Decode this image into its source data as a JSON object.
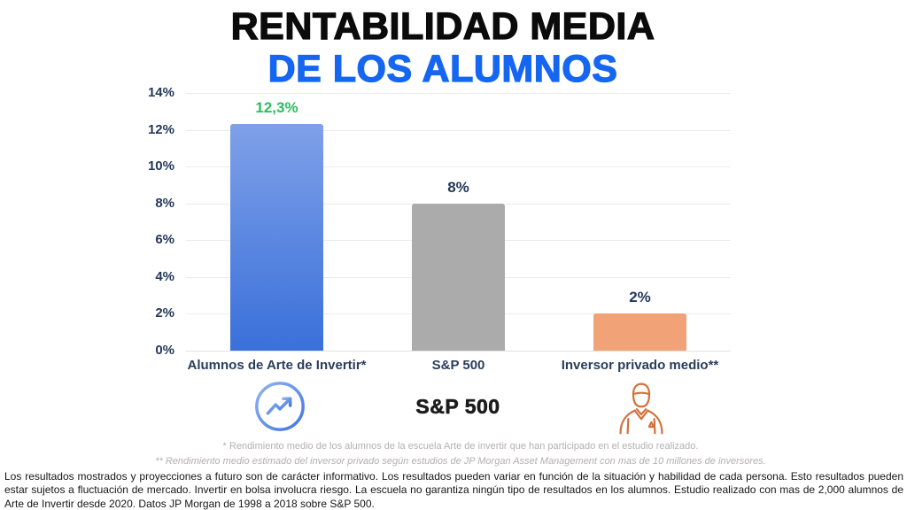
{
  "header": {
    "title_line1": "RENTABILIDAD MEDIA",
    "title_line2": "DE LOS ALUMNOS"
  },
  "chart_data": {
    "type": "bar",
    "title": "RENTABILIDAD MEDIA DE LOS ALUMNOS",
    "categories": [
      "Alumnos de Arte de Invertir*",
      "S&P 500",
      "Inversor privado medio**"
    ],
    "values": [
      12.3,
      8,
      2
    ],
    "value_labels": [
      "12,3%",
      "8%",
      "2%"
    ],
    "value_label_colors": [
      "#2cbe5d",
      "#24395b",
      "#24395b"
    ],
    "bar_fills": [
      [
        "#7fa0e8",
        "#3a70da"
      ],
      [
        "#ababab",
        "#ababab"
      ],
      [
        "#f2a277",
        "#f2a277"
      ]
    ],
    "xlabel": "",
    "ylabel": "",
    "ylim": [
      0,
      14
    ],
    "ytick_step": 2,
    "ytick_labels": [
      "0%",
      "2%",
      "4%",
      "6%",
      "8%",
      "10%",
      "12%",
      "14%"
    ],
    "grid": true,
    "legend": "none"
  },
  "icons": {
    "students_icon": "trending-up-circle-icon",
    "sp500_label": "S&P 500",
    "investor_icon": "businessman-icon"
  },
  "footnotes": {
    "line1": "* Rendimiento medio de los alumnos de la escuela Arte de invertir que han participado en el estudio realizado.",
    "line2": "** Rendimiento medio estimado del inversor privado según estudios de JP Morgan Asset Management con mas de 10 millones de inversores."
  },
  "footer": {
    "disclaimer": "Los resultados mostrados y proyecciones a futuro son de carácter informativo. Los resultados pueden variar en función de la situación y habilidad de cada persona. Esto resultados pueden estar sujetos a fluctuación de mercado. Invertir en bolsa involucra riesgo. La escuela no garantiza ningún  tipo de resultados en los alumnos. Estudio realizado con mas de 2,000 alumnos de Arte de Invertir desde 2020. Datos JP Morgan de 1998 a 2018 sobre S&P 500."
  },
  "colors": {
    "title_blue": "#1566f0",
    "green_label": "#2cbe5d",
    "navy_text": "#24395b",
    "bar_blue_top": "#7fa0e8",
    "bar_blue_bottom": "#3a70da",
    "bar_gray": "#ababab",
    "bar_orange": "#f2a277",
    "icon_orange": "#d4703b",
    "gridline": "#ebebeb"
  }
}
